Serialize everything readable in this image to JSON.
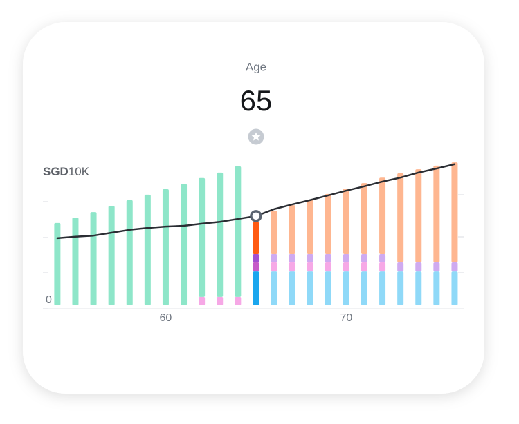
{
  "chart_data": {
    "type": "stacked-bar-line",
    "x_label": "Age",
    "selected": 65,
    "y_label_currency": "SGD",
    "y_label_unit": "10K",
    "x": [
      54,
      55,
      56,
      57,
      58,
      59,
      60,
      61,
      62,
      63,
      64,
      65,
      66,
      67,
      68,
      69,
      70,
      71,
      72,
      73,
      74,
      75,
      76
    ],
    "xlim": [
      53.2,
      76.5
    ],
    "xticks": [
      60,
      70
    ],
    "ylim": [
      0,
      40
    ],
    "yticks": [
      0
    ],
    "series": [
      {
        "color": "#8fd9f8",
        "highlight_color": "#1aa6ee",
        "values": [
          null,
          null,
          null,
          null,
          null,
          null,
          null,
          null,
          null,
          null,
          null,
          9.3,
          9.3,
          9.3,
          9.3,
          9.3,
          9.3,
          9.3,
          9.3,
          9.3,
          9.3,
          9.3,
          9.3
        ]
      },
      {
        "color": "#f6a8e6",
        "highlight_color": "#c65bc9",
        "values": [
          null,
          null,
          null,
          null,
          null,
          null,
          null,
          null,
          2.3,
          2.3,
          2.3,
          2.5,
          2.5,
          2.5,
          2.5,
          2.5,
          2.5,
          2.5,
          2.5,
          null,
          null,
          null,
          null
        ]
      },
      {
        "color": "#cfaaf0",
        "highlight_color": "#a24fd0",
        "values": [
          null,
          null,
          null,
          null,
          null,
          null,
          null,
          null,
          null,
          null,
          null,
          2.3,
          2.3,
          2.3,
          2.3,
          2.3,
          2.3,
          2.3,
          2.3,
          2.5,
          2.5,
          2.5,
          2.5
        ]
      },
      {
        "color": "#feb690",
        "highlight_color": "#ff5a12",
        "values": [
          null,
          null,
          null,
          null,
          null,
          null,
          null,
          null,
          null,
          null,
          null,
          8.8,
          12,
          13.5,
          15,
          16.6,
          18.1,
          19.6,
          21.1,
          24.6,
          25.7,
          26.7,
          27.6
        ]
      },
      {
        "color": "#8ee6c9",
        "highlight_color": "#2fcf9a",
        "values": [
          22.7,
          24.2,
          25.7,
          27.4,
          29,
          30.5,
          32,
          33.5,
          32.8,
          34.3,
          36,
          null,
          null,
          null,
          null,
          null,
          null,
          null,
          null,
          null,
          null,
          null,
          null
        ]
      }
    ],
    "line": {
      "color": "#2a2d33",
      "values": [
        18.5,
        18.9,
        19.2,
        20,
        20.8,
        21.3,
        21.7,
        21.9,
        22.5,
        23,
        23.8,
        24.6,
        26.5,
        27.8,
        29,
        30.3,
        31.6,
        32.8,
        34.1,
        35.2,
        36.6,
        37.7,
        38.9
      ]
    }
  }
}
